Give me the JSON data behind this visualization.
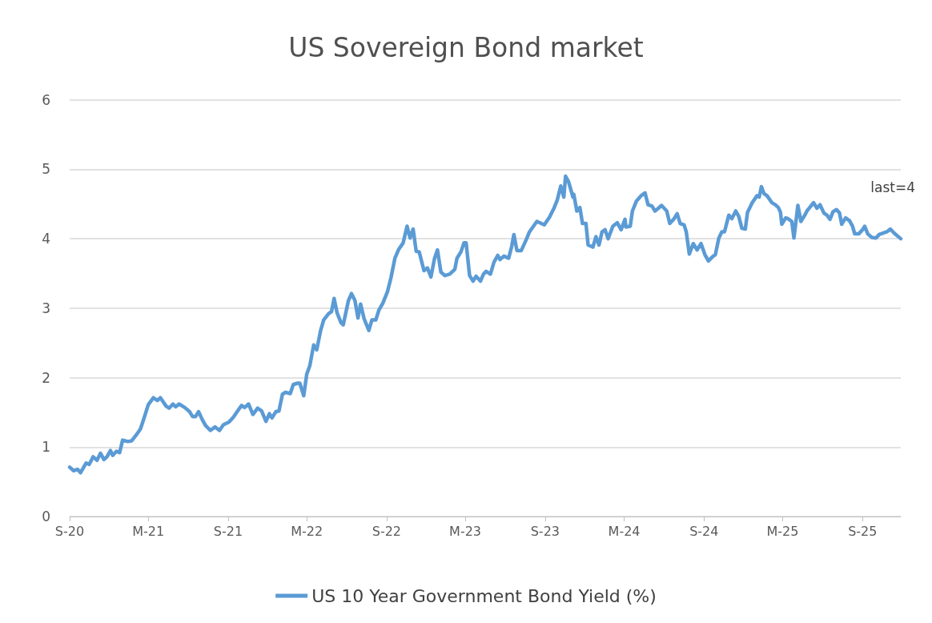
{
  "chart_data": {
    "type": "line",
    "title": "US Sovereign Bond market",
    "legend": "bottom",
    "grid": "y",
    "marker": "none",
    "line_style": "solid",
    "xlim": [
      "2020-09-01",
      "2025-11-28"
    ],
    "xticks": [
      {
        "value": "2020-09-01",
        "label": "S-20"
      },
      {
        "value": "2021-03-01",
        "label": "M-21"
      },
      {
        "value": "2021-09-01",
        "label": "S-21"
      },
      {
        "value": "2022-03-01",
        "label": "M-22"
      },
      {
        "value": "2022-09-01",
        "label": "S-22"
      },
      {
        "value": "2023-03-01",
        "label": "M-23"
      },
      {
        "value": "2023-09-01",
        "label": "S-23"
      },
      {
        "value": "2024-03-01",
        "label": "M-24"
      },
      {
        "value": "2024-09-01",
        "label": "S-24"
      },
      {
        "value": "2025-03-01",
        "label": "M-25"
      },
      {
        "value": "2025-09-01",
        "label": "S-25"
      }
    ],
    "ylim": [
      0,
      6.02
    ],
    "yticks": [
      0,
      1,
      2,
      3,
      4,
      5,
      6
    ],
    "annotations": [
      "last=4"
    ],
    "series": [
      {
        "name": "US 10 Year Government Bond Yield (%)",
        "color": "#5b9bd5",
        "x": [
          "2020-09-01",
          "2020-09-10",
          "2020-09-19",
          "2020-09-26",
          "2020-10-09",
          "2020-10-16",
          "2020-10-25",
          "2020-11-03",
          "2020-11-11",
          "2020-11-19",
          "2020-11-26",
          "2020-12-04",
          "2020-12-09",
          "2020-12-18",
          "2020-12-25",
          "2021-01-01",
          "2021-01-13",
          "2021-01-22",
          "2021-02-02",
          "2021-02-11",
          "2021-02-20",
          "2021-03-01",
          "2021-03-13",
          "2021-03-22",
          "2021-03-29",
          "2021-04-11",
          "2021-04-18",
          "2021-04-27",
          "2021-05-03",
          "2021-05-11",
          "2021-05-24",
          "2021-06-04",
          "2021-06-11",
          "2021-06-18",
          "2021-06-25",
          "2021-07-03",
          "2021-07-11",
          "2021-07-22",
          "2021-08-02",
          "2021-08-12",
          "2021-08-21",
          "2021-09-03",
          "2021-09-13",
          "2021-09-24",
          "2021-10-02",
          "2021-10-09",
          "2021-10-18",
          "2021-10-28",
          "2021-11-08",
          "2021-11-17",
          "2021-11-27",
          "2021-12-05",
          "2021-12-11",
          "2021-12-20",
          "2021-12-27",
          "2022-01-04",
          "2022-01-11",
          "2022-01-22",
          "2022-01-29",
          "2022-02-08",
          "2022-02-13",
          "2022-02-22",
          "2022-03-01",
          "2022-03-08",
          "2022-03-17",
          "2022-03-24",
          "2022-04-02",
          "2022-04-09",
          "2022-04-20",
          "2022-04-27",
          "2022-05-03",
          "2022-05-10",
          "2022-05-19",
          "2022-05-24",
          "2022-06-05",
          "2022-06-12",
          "2022-06-20",
          "2022-06-27",
          "2022-07-03",
          "2022-07-11",
          "2022-07-22",
          "2022-07-29",
          "2022-08-07",
          "2022-08-14",
          "2022-08-23",
          "2022-09-03",
          "2022-09-11",
          "2022-09-20",
          "2022-09-29",
          "2022-10-09",
          "2022-10-18",
          "2022-10-25",
          "2022-11-01",
          "2022-11-08",
          "2022-11-15",
          "2022-11-26",
          "2022-12-04",
          "2022-12-12",
          "2022-12-20",
          "2022-12-27",
          "2023-01-04",
          "2023-01-13",
          "2023-01-24",
          "2023-02-05",
          "2023-02-10",
          "2023-02-19",
          "2023-02-26",
          "2023-03-03",
          "2023-03-11",
          "2023-03-19",
          "2023-03-26",
          "2023-04-05",
          "2023-04-12",
          "2023-04-18",
          "2023-04-28",
          "2023-05-06",
          "2023-05-15",
          "2023-05-20",
          "2023-05-29",
          "2023-06-09",
          "2023-06-16",
          "2023-06-21",
          "2023-06-28",
          "2023-07-08",
          "2023-07-19",
          "2023-07-27",
          "2023-08-13",
          "2023-08-30",
          "2023-09-11",
          "2023-09-22",
          "2023-09-29",
          "2023-10-07",
          "2023-10-14",
          "2023-10-18",
          "2023-10-25",
          "2023-11-04",
          "2023-11-06",
          "2023-11-13",
          "2023-11-20",
          "2023-11-26",
          "2023-12-04",
          "2023-12-09",
          "2023-12-20",
          "2023-12-27",
          "2024-01-03",
          "2024-01-10",
          "2024-01-17",
          "2024-01-24",
          "2024-02-04",
          "2024-02-14",
          "2024-02-23",
          "2024-03-03",
          "2024-03-05",
          "2024-03-15",
          "2024-03-20",
          "2024-03-29",
          "2024-04-09",
          "2024-04-18",
          "2024-04-25",
          "2024-05-04",
          "2024-05-11",
          "2024-05-19",
          "2024-05-26",
          "2024-06-07",
          "2024-06-14",
          "2024-06-23",
          "2024-07-01",
          "2024-07-08",
          "2024-07-17",
          "2024-07-22",
          "2024-07-29",
          "2024-08-07",
          "2024-08-16",
          "2024-08-25",
          "2024-09-03",
          "2024-09-11",
          "2024-09-22",
          "2024-09-27",
          "2024-10-05",
          "2024-10-12",
          "2024-10-18",
          "2024-10-28",
          "2024-11-04",
          "2024-11-13",
          "2024-11-20",
          "2024-11-27",
          "2024-12-05",
          "2024-12-10",
          "2024-12-21",
          "2025-01-01",
          "2025-01-06",
          "2025-01-11",
          "2025-01-17",
          "2025-01-24",
          "2025-02-04",
          "2025-02-12",
          "2025-02-19",
          "2025-02-24",
          "2025-02-27",
          "2025-03-08",
          "2025-03-13",
          "2025-03-22",
          "2025-03-27",
          "2025-04-05",
          "2025-04-12",
          "2025-04-21",
          "2025-04-26",
          "2025-05-06",
          "2025-05-11",
          "2025-05-19",
          "2025-05-26",
          "2025-06-04",
          "2025-06-11",
          "2025-06-18",
          "2025-06-25",
          "2025-07-03",
          "2025-07-10",
          "2025-07-15",
          "2025-07-24",
          "2025-08-02",
          "2025-08-09",
          "2025-08-14",
          "2025-08-23",
          "2025-09-01",
          "2025-09-06",
          "2025-09-13",
          "2025-09-22",
          "2025-10-02",
          "2025-10-09",
          "2025-10-18",
          "2025-10-27",
          "2025-11-04",
          "2025-11-13",
          "2025-11-28"
        ],
        "values": [
          0.71,
          0.66,
          0.68,
          0.63,
          0.77,
          0.75,
          0.86,
          0.81,
          0.91,
          0.82,
          0.86,
          0.95,
          0.88,
          0.94,
          0.92,
          1.1,
          1.08,
          1.09,
          1.18,
          1.26,
          1.43,
          1.61,
          1.71,
          1.67,
          1.71,
          1.59,
          1.56,
          1.62,
          1.58,
          1.62,
          1.57,
          1.51,
          1.44,
          1.44,
          1.51,
          1.4,
          1.31,
          1.24,
          1.29,
          1.24,
          1.32,
          1.36,
          1.43,
          1.53,
          1.6,
          1.57,
          1.62,
          1.47,
          1.56,
          1.52,
          1.37,
          1.48,
          1.42,
          1.51,
          1.52,
          1.76,
          1.79,
          1.77,
          1.9,
          1.92,
          1.92,
          1.74,
          2.05,
          2.17,
          2.47,
          2.4,
          2.68,
          2.83,
          2.92,
          2.95,
          3.14,
          2.93,
          2.79,
          2.76,
          3.11,
          3.21,
          3.11,
          2.86,
          3.06,
          2.85,
          2.68,
          2.83,
          2.83,
          2.97,
          3.07,
          3.24,
          3.44,
          3.72,
          3.85,
          3.94,
          4.18,
          4.01,
          4.14,
          3.82,
          3.81,
          3.54,
          3.58,
          3.45,
          3.71,
          3.84,
          3.52,
          3.47,
          3.49,
          3.56,
          3.72,
          3.81,
          3.94,
          3.94,
          3.47,
          3.39,
          3.46,
          3.39,
          3.49,
          3.53,
          3.49,
          3.66,
          3.76,
          3.7,
          3.75,
          3.72,
          3.89,
          4.06,
          3.83,
          3.83,
          3.98,
          4.1,
          4.25,
          4.2,
          4.31,
          4.45,
          4.56,
          4.76,
          4.6,
          4.9,
          4.82,
          4.6,
          4.64,
          4.4,
          4.45,
          4.22,
          4.22,
          3.91,
          3.88,
          4.03,
          3.91,
          4.1,
          4.13,
          4.0,
          4.18,
          4.23,
          4.13,
          4.28,
          4.17,
          4.18,
          4.4,
          4.54,
          4.62,
          4.66,
          4.49,
          4.47,
          4.4,
          4.44,
          4.48,
          4.4,
          4.22,
          4.28,
          4.36,
          4.22,
          4.2,
          4.1,
          3.78,
          3.93,
          3.84,
          3.93,
          3.77,
          3.68,
          3.75,
          3.77,
          4.01,
          4.1,
          4.1,
          4.34,
          4.29,
          4.4,
          4.32,
          4.15,
          4.14,
          4.38,
          4.52,
          4.62,
          4.6,
          4.75,
          4.65,
          4.62,
          4.52,
          4.49,
          4.45,
          4.38,
          4.21,
          4.3,
          4.29,
          4.25,
          4.01,
          4.48,
          4.25,
          4.34,
          4.4,
          4.48,
          4.52,
          4.44,
          4.49,
          4.37,
          4.34,
          4.28,
          4.39,
          4.42,
          4.37,
          4.21,
          4.3,
          4.26,
          4.18,
          4.07,
          4.07,
          4.13,
          4.18,
          4.07,
          4.02,
          4.01,
          4.06,
          4.08,
          4.1,
          4.14,
          4.08,
          4.0
        ]
      }
    ]
  }
}
